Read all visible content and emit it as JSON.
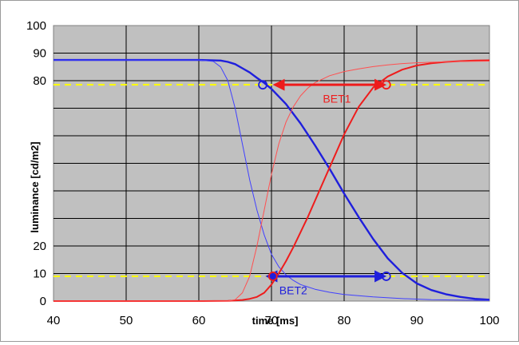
{
  "chart_data": {
    "type": "line",
    "title": "",
    "xlabel": "time [ms]",
    "ylabel": "luminance  [cd/m2]",
    "xlim": [
      40,
      100
    ],
    "ylim": [
      0,
      100
    ],
    "x_ticks": [
      "40",
      "50",
      "60",
      "70",
      "80",
      "90",
      "100"
    ],
    "y_ticks": [
      "0",
      "10",
      "20",
      "80",
      "90",
      "100"
    ],
    "grid": "on",
    "plot_background": "#c0c0c0",
    "threshold_lines": [
      {
        "y": 78.5,
        "color": "#ffff00",
        "style": "dashed"
      },
      {
        "y": 9,
        "color": "#ffff00",
        "style": "dashed"
      }
    ],
    "series": [
      {
        "color": "#1f1fdc",
        "width": 2.4,
        "x": [
          40,
          60,
          63,
          64,
          65,
          66,
          67,
          68,
          69,
          70,
          72,
          74,
          76,
          78,
          80,
          82,
          84,
          86,
          88,
          90,
          92,
          94,
          96,
          98,
          100
        ],
        "y": [
          87.5,
          87.5,
          87.3,
          86.8,
          86,
          84.5,
          83,
          81,
          79.2,
          77,
          71.5,
          64.5,
          56.5,
          48,
          39,
          30.5,
          22.5,
          15.5,
          10.2,
          6.4,
          4,
          2.5,
          1.5,
          0.8,
          0.5
        ]
      },
      {
        "color": "#4040ff",
        "width": 1,
        "x": [
          40,
          60,
          62,
          63,
          64,
          65,
          66,
          67,
          68,
          69,
          70,
          71,
          72,
          73,
          74,
          76,
          78,
          80,
          84,
          88,
          92,
          100
        ],
        "y": [
          87.5,
          87.5,
          87,
          85,
          80,
          70,
          57,
          44,
          33,
          24,
          17,
          12.5,
          9.5,
          7.5,
          6,
          4.3,
          3.2,
          2.4,
          1.5,
          0.9,
          0.5,
          0.2
        ]
      },
      {
        "color": "#ee1c1c",
        "width": 2,
        "x": [
          40,
          60,
          64,
          65,
          66,
          67,
          68,
          69,
          70,
          71,
          72,
          73,
          74,
          75,
          76,
          77,
          78,
          79,
          80,
          82,
          84,
          86,
          88,
          90,
          92,
          94,
          96,
          98,
          100
        ],
        "y": [
          0,
          0,
          0.1,
          0.2,
          0.4,
          0.8,
          1.5,
          3,
          6,
          10,
          14.5,
          19.5,
          25,
          30.5,
          36.5,
          42.5,
          48.5,
          54.5,
          60.5,
          70.5,
          77.5,
          81.5,
          84,
          85.5,
          86.3,
          86.8,
          87.1,
          87.3,
          87.4
        ]
      },
      {
        "color": "#ff5050",
        "width": 1,
        "x": [
          40,
          64,
          65,
          66,
          67,
          68,
          69,
          70,
          71,
          72,
          73,
          74,
          75,
          76,
          78,
          80,
          82,
          84,
          86,
          88,
          90,
          94,
          100
        ],
        "y": [
          0,
          0,
          0.5,
          3,
          9,
          20,
          33,
          46,
          57,
          65,
          70.5,
          74.5,
          77.3,
          79.3,
          81.8,
          83.3,
          84.3,
          85.1,
          85.7,
          86.2,
          86.5,
          86.9,
          87.1
        ]
      }
    ],
    "annotations": [
      {
        "text": "BET1",
        "color": "#ee1c1c",
        "x": 79,
        "y": 72
      },
      {
        "text": "BET2",
        "color": "#1f1fdc",
        "x": 73,
        "y": 2.5
      }
    ],
    "arrows": [
      {
        "from": [
          70.5,
          78.5
        ],
        "to": [
          85.5,
          78.5
        ],
        "color": "#ee1c1c"
      },
      {
        "from": [
          69.5,
          9
        ],
        "to": [
          85.5,
          9
        ],
        "color": "#1f1fdc"
      }
    ],
    "markers": [
      {
        "x": 68.8,
        "y": 78.5,
        "color": "#1f1fdc"
      },
      {
        "x": 85.8,
        "y": 78.5,
        "color": "#ee1c1c"
      },
      {
        "x": 70.2,
        "y": 9,
        "color": "#ee1c1c"
      },
      {
        "x": 85.8,
        "y": 9,
        "color": "#1f1fdc"
      }
    ]
  }
}
